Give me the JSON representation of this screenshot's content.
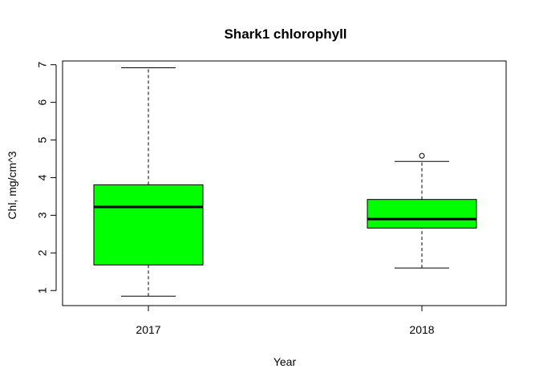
{
  "chart_data": {
    "type": "boxplot",
    "title": "Shark1 chlorophyll",
    "xlabel": "Year",
    "ylabel": "Chl, mg/cm^3",
    "categories": [
      "2017",
      "2018"
    ],
    "yticks": [
      "1",
      "2",
      "3",
      "4",
      "5",
      "6",
      "7"
    ],
    "ylim": [
      0.6,
      7.1
    ],
    "grid": false,
    "legend": "none",
    "box_color": "#00FF00",
    "boxes": [
      {
        "category": "2017",
        "whisker_low": 0.85,
        "q1": 1.68,
        "median": 3.22,
        "q3": 3.81,
        "whisker_high": 6.92,
        "outliers": []
      },
      {
        "category": "2018",
        "whisker_low": 1.6,
        "q1": 2.66,
        "median": 2.9,
        "q3": 3.42,
        "whisker_high": 4.43,
        "outliers": [
          4.58
        ]
      }
    ]
  }
}
